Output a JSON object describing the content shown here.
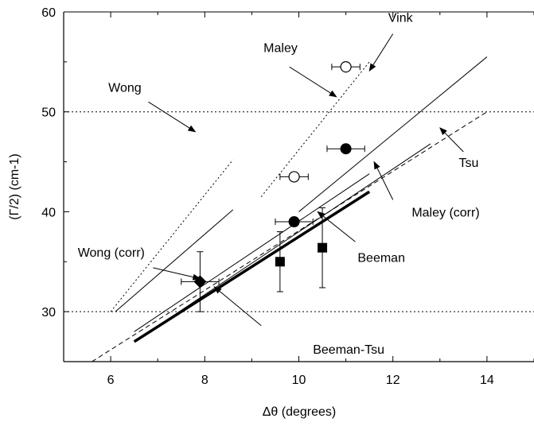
{
  "chart_data": {
    "type": "scatter",
    "xlabel": "Δθ (degrees)",
    "ylabel": "(Γ/2) (cm-1)",
    "xlim": [
      5,
      15
    ],
    "ylim": [
      25,
      60
    ],
    "x_ticks": [
      6,
      8,
      10,
      12,
      14
    ],
    "y_ticks": [
      30,
      40,
      50,
      60
    ],
    "grid": "dotted horizontal lines at 30 and 50",
    "lines": [
      {
        "name": "Maley",
        "style": "dotted",
        "width": 1,
        "points": [
          [
            9.2,
            41.5
          ],
          [
            11.5,
            55.0
          ]
        ]
      },
      {
        "name": "Wong",
        "style": "dotted",
        "width": 1,
        "points": [
          [
            6.0,
            30.0
          ],
          [
            8.6,
            45.2
          ]
        ]
      },
      {
        "name": "Vink",
        "style": "solid",
        "width": 1,
        "points": [
          [
            10.0,
            40.0
          ],
          [
            14.0,
            55.5
          ]
        ]
      },
      {
        "name": "Wong (corr)",
        "style": "solid",
        "width": 1,
        "points": [
          [
            6.1,
            30.0
          ],
          [
            8.6,
            40.2
          ]
        ]
      },
      {
        "name": "Beeman",
        "style": "solid",
        "width": 1,
        "points": [
          [
            6.5,
            28.0
          ],
          [
            11.5,
            43.8
          ]
        ]
      },
      {
        "name": "Maley (corr)",
        "style": "solid",
        "width": 1,
        "points": [
          [
            6.6,
            27.3
          ],
          [
            12.8,
            46.8
          ]
        ]
      },
      {
        "name": "Tsu",
        "style": "dashed",
        "width": 1,
        "points": [
          [
            5.6,
            25.0
          ],
          [
            14.0,
            50.0
          ]
        ]
      },
      {
        "name": "Beeman-Tsu",
        "style": "solid",
        "width": 3.5,
        "points": [
          [
            6.5,
            27.0
          ],
          [
            11.5,
            42.0
          ]
        ]
      }
    ],
    "points": [
      {
        "marker": "open-circle",
        "x": 11.0,
        "y": 54.5,
        "xerr": 0.3,
        "yerr": 0
      },
      {
        "marker": "open-circle",
        "x": 9.9,
        "y": 43.5,
        "xerr": 0.3,
        "yerr": 0
      },
      {
        "marker": "filled-circle",
        "x": 11.0,
        "y": 46.3,
        "xerr": 0.4,
        "yerr": 0
      },
      {
        "marker": "filled-circle",
        "x": 9.9,
        "y": 39.0,
        "xerr": 0.4,
        "yerr": 0
      },
      {
        "marker": "filled-square",
        "x": 9.6,
        "y": 35.0,
        "xerr": 0,
        "yerr": 3.0
      },
      {
        "marker": "filled-square",
        "x": 10.5,
        "y": 36.4,
        "xerr": 0,
        "yerr": 4.0
      },
      {
        "marker": "filled-diamond",
        "x": 7.9,
        "y": 33.0,
        "xerr": 0.4,
        "yerr": 3.0
      }
    ],
    "annotations": [
      {
        "text": "Maley",
        "text_x": 9.25,
        "text_y": 56.0,
        "arrow_from": [
          9.8,
          54.5
        ],
        "arrow_to": [
          10.8,
          51.5
        ]
      },
      {
        "text": "Vink",
        "text_x": 11.9,
        "text_y": 59.0,
        "arrow_from": [
          12.0,
          57.8
        ],
        "arrow_to": [
          11.5,
          54.1
        ]
      },
      {
        "text": "Wong",
        "text_x": 5.95,
        "text_y": 52.0,
        "arrow_from": [
          6.8,
          51.0
        ],
        "arrow_to": [
          7.8,
          48.0
        ]
      },
      {
        "text": "Tsu",
        "text_x": 13.4,
        "text_y": 44.5,
        "arrow_from": [
          13.5,
          46.0
        ],
        "arrow_to": [
          13.0,
          48.4
        ]
      },
      {
        "text": "Maley (corr)",
        "text_x": 12.4,
        "text_y": 39.5,
        "arrow_from": [
          12.0,
          41.2
        ],
        "arrow_to": [
          11.6,
          45.0
        ]
      },
      {
        "text": "Beeman",
        "text_x": 11.25,
        "text_y": 35.0,
        "arrow_from": [
          11.2,
          37.0
        ],
        "arrow_to": [
          10.4,
          40.0
        ]
      },
      {
        "text": "Wong (corr)",
        "text_x": 5.3,
        "text_y": 35.5,
        "arrow_from": [
          6.9,
          34.4
        ],
        "arrow_to": [
          7.9,
          33.3
        ]
      },
      {
        "text": "Beeman-Tsu",
        "text_x": 10.3,
        "text_y": 25.8,
        "arrow_from": [
          9.2,
          28.6
        ],
        "arrow_to": [
          8.2,
          32.5
        ]
      }
    ]
  }
}
